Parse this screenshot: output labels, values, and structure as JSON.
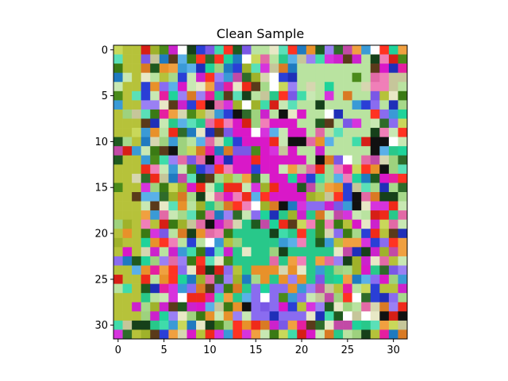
{
  "chart_data": {
    "type": "heatmap",
    "title": "Clean Sample",
    "xlabel": "",
    "ylabel": "",
    "image_shape": [
      32,
      32
    ],
    "xlim": [
      -0.5,
      31.5
    ],
    "ylim": [
      31.5,
      -0.5
    ],
    "x_ticks": [
      0,
      5,
      10,
      15,
      20,
      25,
      30
    ],
    "x_tick_labels": [
      "0",
      "5",
      "10",
      "15",
      "20",
      "25",
      "30"
    ],
    "y_ticks": [
      0,
      5,
      10,
      15,
      20,
      25,
      30
    ],
    "y_tick_labels": [
      "0",
      "5",
      "10",
      "15",
      "20",
      "25",
      "30"
    ],
    "grid": false,
    "legend": "none",
    "palette": [
      "#b6c23a",
      "#9fb22a",
      "#c9d85a",
      "#e51fa0",
      "#d918c8",
      "#2a3fd6",
      "#1f2fb8",
      "#4a8a1a",
      "#3a7a14",
      "#2e6b2a",
      "#1f5a1f",
      "#16401a",
      "#a6d98a",
      "#b9e3a0",
      "#c8e8b3",
      "#9ed27e",
      "#e26aa6",
      "#f07fb8",
      "#c24aa6",
      "#d633dd",
      "#cc22cc",
      "#28c88a",
      "#1fd39a",
      "#3fdcaa",
      "#5ae0b8",
      "#e8912a",
      "#f0a040",
      "#d97a24",
      "#8a6cf0",
      "#7a58e6",
      "#9a80f4",
      "#ef2a1a",
      "#ff3322",
      "#d61f16",
      "#3a9ad6",
      "#5ab0e8",
      "#1f7ac0",
      "#d6d6b0",
      "#c6c69a",
      "#e8e8c6",
      "#ffffff",
      "#111111",
      "#5a3a1a"
    ],
    "regions": [
      {
        "label": "magenta-cluster",
        "rows": [
          8,
          16
        ],
        "cols": [
          13,
          20
        ],
        "color": "#d918c8"
      },
      {
        "label": "light-green-cluster",
        "rows": [
          2,
          12
        ],
        "cols": [
          20,
          27
        ],
        "color": "#b9e3a0"
      },
      {
        "label": "teal-cluster",
        "rows": [
          20,
          25
        ],
        "cols": [
          13,
          23
        ],
        "color": "#28c88a"
      },
      {
        "label": "orange-band",
        "rows": [
          24,
          25
        ],
        "cols": [
          15,
          22
        ],
        "color": "#e8912a"
      },
      {
        "label": "purple-block",
        "rows": [
          26,
          29
        ],
        "cols": [
          15,
          20
        ],
        "color": "#8a6cf0"
      },
      {
        "label": "red-patch",
        "rows": [
          14,
          16
        ],
        "cols": [
          12,
          17
        ],
        "color": "#ef2a1a"
      },
      {
        "label": "olive-left-edge",
        "rows": [
          0,
          31
        ],
        "cols": [
          0,
          2
        ],
        "color": "#b6c23a"
      }
    ]
  }
}
